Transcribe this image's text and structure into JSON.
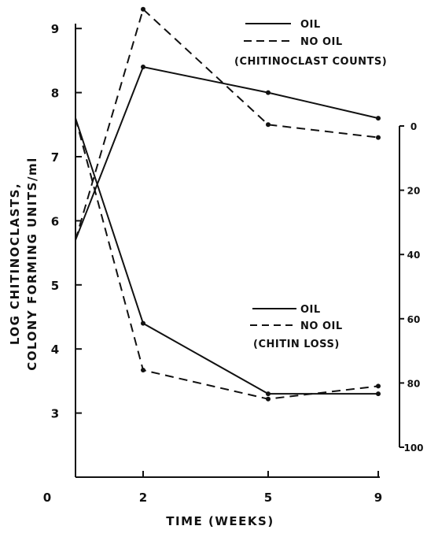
{
  "chart_data": {
    "type": "line",
    "xlabel": "TIME (WEEKS)",
    "ylabel_lines": [
      "LOG CHITINOCLASTS,",
      "COLONY FORMING UNITS/ml"
    ],
    "x_ticks": [
      "2",
      "5",
      "9"
    ],
    "x_tick_values": [
      2,
      5,
      9
    ],
    "origin_label": "0",
    "y_left": {
      "range": [
        2,
        9.4
      ],
      "ticks": [
        "3",
        "4",
        "5",
        "6",
        "7",
        "8",
        "9"
      ],
      "tick_values": [
        3,
        4,
        5,
        6,
        7,
        8,
        9
      ]
    },
    "y_right": {
      "range": [
        0,
        100
      ],
      "ticks": [
        "0",
        "20",
        "40",
        "60",
        "80",
        "100"
      ],
      "tick_values": [
        0,
        20,
        40,
        60,
        80,
        100
      ]
    },
    "legends": [
      {
        "title": "(CHITINOCLAST COUNTS)",
        "entries": [
          {
            "label": "OIL",
            "style": "solid"
          },
          {
            "label": "NO OIL",
            "style": "dashed"
          }
        ]
      },
      {
        "title": "(CHITIN LOSS)",
        "entries": [
          {
            "label": "OIL",
            "style": "solid"
          },
          {
            "label": "NO OIL",
            "style": "dashed"
          }
        ]
      }
    ],
    "series": [
      {
        "axis": "left",
        "style": "solid",
        "x": [
          0,
          2,
          5,
          9
        ],
        "y": [
          5.7,
          8.4,
          8.0,
          7.6
        ]
      },
      {
        "axis": "left",
        "style": "dashed",
        "x": [
          0,
          2,
          5,
          9
        ],
        "y": [
          5.7,
          9.3,
          7.5,
          7.3
        ]
      },
      {
        "axis": "left",
        "style": "solid",
        "x": [
          0,
          2,
          5,
          9
        ],
        "y": [
          7.6,
          4.4,
          3.3,
          3.3
        ]
      },
      {
        "axis": "left",
        "style": "dashed",
        "x": [
          0,
          2,
          5,
          9
        ],
        "y": [
          7.6,
          3.67,
          3.22,
          3.42
        ]
      }
    ],
    "grid": false
  }
}
